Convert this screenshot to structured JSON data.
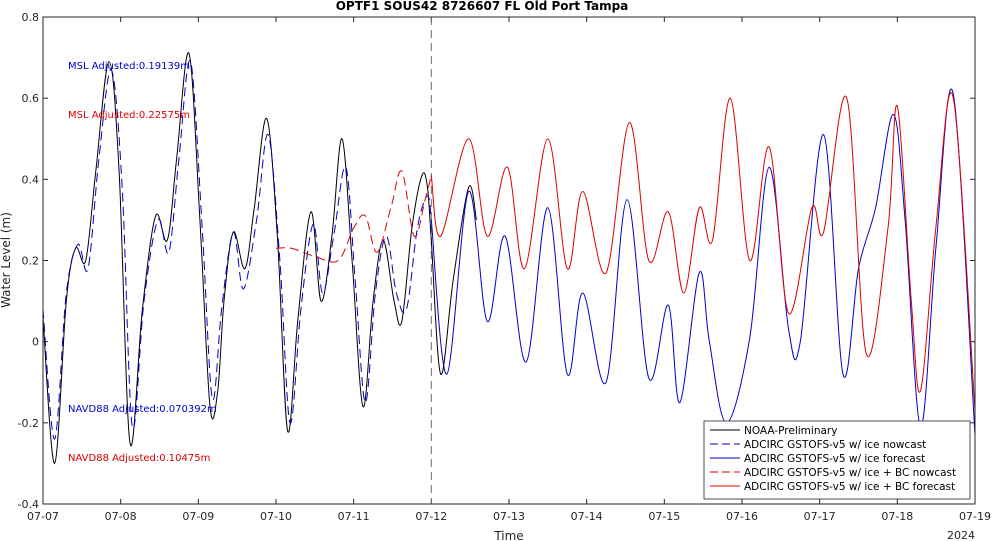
{
  "chart_data": {
    "type": "line",
    "title": "OPTF1 SOUS42 8726607 FL Old Port Tampa",
    "xlabel": "Time",
    "ylabel": "Water Level (m)",
    "xlim": [
      0,
      12
    ],
    "ylim": [
      -0.4,
      0.8
    ],
    "x_ticks": [
      0,
      1,
      2,
      3,
      4,
      5,
      6,
      7,
      8,
      9,
      10,
      11,
      12
    ],
    "x_tick_labels": [
      "07-07",
      "07-08",
      "07-09",
      "07-10",
      "07-11",
      "07-12",
      "07-13",
      "07-14",
      "07-15",
      "07-16",
      "07-17",
      "07-18",
      "07-19"
    ],
    "x_year_label": "2024",
    "y_ticks": [
      -0.4,
      -0.2,
      0,
      0.2,
      0.4,
      0.6,
      0.8
    ],
    "y_tick_labels": [
      "-0.4",
      "-0.2",
      "0",
      "0.2",
      "0.4",
      "0.6",
      "0.8"
    ],
    "vertical_line_x": 5,
    "annotations": [
      {
        "text": "MSL Adjusted:0.19139m",
        "color": "#0000cc"
      },
      {
        "text": "MSL Adjusted:0.22575m",
        "color": "#dd0000"
      },
      {
        "text": "NAVD88 Adjusted:0.070392m",
        "color": "#0000cc"
      },
      {
        "text": "NAVD88 Adjusted:0.10475m",
        "color": "#dd0000"
      }
    ],
    "legend_position": "bottom-right",
    "series": [
      {
        "name": "NOAA-Preliminary",
        "color": "#000000",
        "style": "solid",
        "points": [
          [
            0,
            0.06
          ],
          [
            0.15,
            -0.3
          ],
          [
            0.3,
            0.1
          ],
          [
            0.42,
            0.23
          ],
          [
            0.55,
            0.2
          ],
          [
            0.68,
            0.42
          ],
          [
            0.85,
            0.69
          ],
          [
            0.98,
            0.42
          ],
          [
            1.12,
            -0.25
          ],
          [
            1.28,
            0.08
          ],
          [
            1.45,
            0.31
          ],
          [
            1.6,
            0.25
          ],
          [
            1.72,
            0.45
          ],
          [
            1.88,
            0.71
          ],
          [
            2.02,
            0.3
          ],
          [
            2.15,
            -0.16
          ],
          [
            2.25,
            -0.12
          ],
          [
            2.33,
            0.1
          ],
          [
            2.45,
            0.27
          ],
          [
            2.6,
            0.18
          ],
          [
            2.72,
            0.33
          ],
          [
            2.88,
            0.55
          ],
          [
            3.02,
            0.25
          ],
          [
            3.15,
            -0.22
          ],
          [
            3.28,
            0.05
          ],
          [
            3.45,
            0.32
          ],
          [
            3.58,
            0.1
          ],
          [
            3.72,
            0.26
          ],
          [
            3.85,
            0.5
          ],
          [
            3.98,
            0.2
          ],
          [
            4.12,
            -0.16
          ],
          [
            4.25,
            0.1
          ],
          [
            4.38,
            0.25
          ],
          [
            4.52,
            0.1
          ],
          [
            4.62,
            0.05
          ],
          [
            4.75,
            0.28
          ],
          [
            4.88,
            0.41
          ],
          [
            4.95,
            0.38
          ],
          [
            5.0,
            0.25
          ],
          [
            5.12,
            -0.08
          ],
          [
            5.28,
            0.15
          ],
          [
            5.48,
            0.38
          ],
          [
            5.58,
            0.3
          ]
        ]
      },
      {
        "name": "ADCIRC GSTOFS-v5 w/ ice nowcast",
        "color": "#0000cc",
        "style": "dashed",
        "points": [
          [
            0,
            0.08
          ],
          [
            0.15,
            -0.24
          ],
          [
            0.3,
            0.12
          ],
          [
            0.45,
            0.24
          ],
          [
            0.58,
            0.18
          ],
          [
            0.72,
            0.45
          ],
          [
            0.88,
            0.67
          ],
          [
            1.02,
            0.38
          ],
          [
            1.15,
            -0.21
          ],
          [
            1.3,
            0.1
          ],
          [
            1.48,
            0.3
          ],
          [
            1.62,
            0.22
          ],
          [
            1.75,
            0.45
          ],
          [
            1.9,
            0.69
          ],
          [
            2.05,
            0.28
          ],
          [
            2.18,
            -0.14
          ],
          [
            2.3,
            0.08
          ],
          [
            2.45,
            0.27
          ],
          [
            2.58,
            0.13
          ],
          [
            2.75,
            0.3
          ],
          [
            2.9,
            0.51
          ],
          [
            3.05,
            0.2
          ],
          [
            3.18,
            -0.2
          ],
          [
            3.32,
            0.08
          ],
          [
            3.48,
            0.29
          ],
          [
            3.6,
            0.12
          ],
          [
            3.75,
            0.27
          ],
          [
            3.9,
            0.43
          ],
          [
            4.02,
            0.15
          ],
          [
            4.15,
            -0.15
          ],
          [
            4.28,
            0.12
          ],
          [
            4.42,
            0.26
          ],
          [
            4.55,
            0.12
          ],
          [
            4.68,
            0.08
          ],
          [
            4.82,
            0.28
          ],
          [
            4.95,
            0.36
          ],
          [
            5.0,
            0.3
          ]
        ]
      },
      {
        "name": "ADCIRC GSTOFS-v5 w/ ice forecast",
        "color": "#0000cc",
        "style": "solid",
        "points": [
          [
            5.0,
            0.3
          ],
          [
            5.2,
            -0.08
          ],
          [
            5.48,
            0.37
          ],
          [
            5.72,
            0.05
          ],
          [
            5.95,
            0.26
          ],
          [
            6.22,
            -0.05
          ],
          [
            6.5,
            0.33
          ],
          [
            6.75,
            -0.08
          ],
          [
            6.95,
            0.12
          ],
          [
            7.25,
            -0.1
          ],
          [
            7.52,
            0.35
          ],
          [
            7.8,
            -0.09
          ],
          [
            8.05,
            0.09
          ],
          [
            8.2,
            -0.15
          ],
          [
            8.45,
            0.17
          ],
          [
            8.58,
            0.0
          ],
          [
            8.8,
            -0.2
          ],
          [
            9.1,
            0.01
          ],
          [
            9.35,
            0.43
          ],
          [
            9.6,
            0.03
          ],
          [
            9.75,
            0.0
          ],
          [
            10.05,
            0.51
          ],
          [
            10.3,
            -0.08
          ],
          [
            10.5,
            0.18
          ],
          [
            10.72,
            0.33
          ],
          [
            10.95,
            0.56
          ],
          [
            11.1,
            0.3
          ],
          [
            11.3,
            -0.21
          ],
          [
            11.5,
            0.24
          ],
          [
            11.72,
            0.61
          ],
          [
            12.0,
            -0.23
          ]
        ]
      },
      {
        "name": "ADCIRC GSTOFS-v5 w/ ice + BC nowcast",
        "color": "#dd0000",
        "style": "dashed",
        "points": [
          [
            3.0,
            0.23
          ],
          [
            3.2,
            0.23
          ],
          [
            3.5,
            0.21
          ],
          [
            3.8,
            0.2
          ],
          [
            4.0,
            0.28
          ],
          [
            4.15,
            0.31
          ],
          [
            4.3,
            0.22
          ],
          [
            4.48,
            0.33
          ],
          [
            4.62,
            0.42
          ],
          [
            4.78,
            0.26
          ],
          [
            4.92,
            0.35
          ],
          [
            5.0,
            0.41
          ]
        ]
      },
      {
        "name": "ADCIRC GSTOFS-v5 w/ ice + BC forecast",
        "color": "#dd0000",
        "style": "solid",
        "points": [
          [
            5.0,
            0.41
          ],
          [
            5.12,
            0.26
          ],
          [
            5.48,
            0.5
          ],
          [
            5.72,
            0.26
          ],
          [
            5.98,
            0.43
          ],
          [
            6.2,
            0.18
          ],
          [
            6.5,
            0.5
          ],
          [
            6.75,
            0.18
          ],
          [
            6.95,
            0.37
          ],
          [
            7.25,
            0.17
          ],
          [
            7.55,
            0.54
          ],
          [
            7.8,
            0.2
          ],
          [
            8.05,
            0.32
          ],
          [
            8.25,
            0.12
          ],
          [
            8.45,
            0.33
          ],
          [
            8.62,
            0.25
          ],
          [
            8.85,
            0.6
          ],
          [
            9.1,
            0.2
          ],
          [
            9.35,
            0.48
          ],
          [
            9.6,
            0.07
          ],
          [
            9.9,
            0.33
          ],
          [
            10.05,
            0.27
          ],
          [
            10.35,
            0.6
          ],
          [
            10.6,
            -0.03
          ],
          [
            10.88,
            0.28
          ],
          [
            11.0,
            0.58
          ],
          [
            11.18,
            0.1
          ],
          [
            11.3,
            -0.12
          ],
          [
            11.5,
            0.29
          ],
          [
            11.72,
            0.6
          ],
          [
            12.0,
            -0.17
          ]
        ]
      }
    ]
  }
}
